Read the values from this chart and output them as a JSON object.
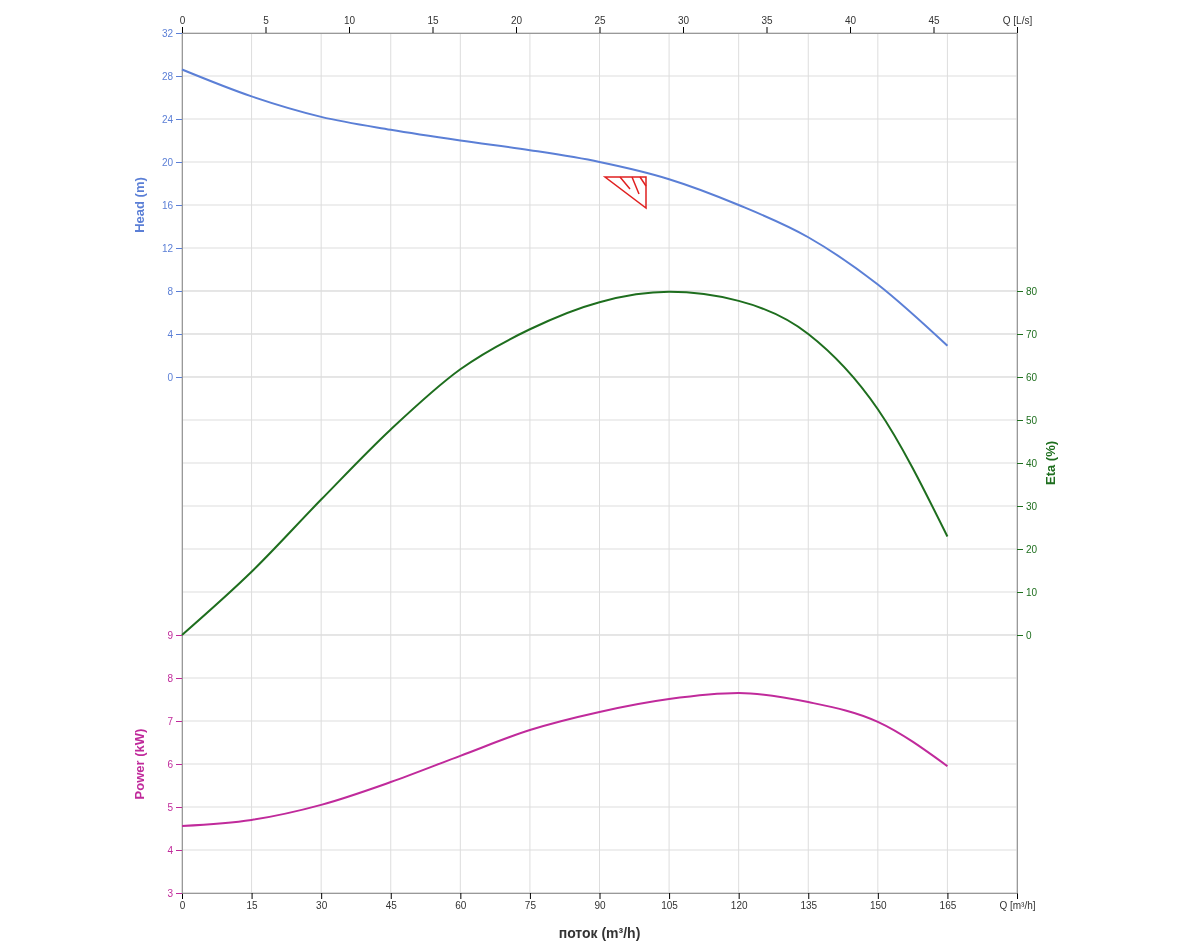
{
  "chart_data": {
    "type": "line",
    "xlabel": "поток (m³/h)",
    "ylabel": "Head (m)",
    "y2label": "Eta (%)",
    "y3label": "Power (kW)",
    "x": [
      0,
      15,
      30,
      45,
      60,
      75,
      90,
      105,
      120,
      135,
      150,
      165
    ],
    "xlim": [
      0,
      180
    ],
    "xticks": [
      0,
      15,
      30,
      45,
      60,
      75,
      90,
      105,
      120,
      135,
      150,
      165,
      {
        "value": 180,
        "label": "Q [m³/h]"
      }
    ],
    "x2lim": [
      0,
      50
    ],
    "x2ticks": [
      0,
      5,
      10,
      15,
      20,
      25,
      30,
      35,
      40,
      45,
      {
        "value": 50,
        "label": "Q [L/s]"
      }
    ],
    "ylim": [
      -48,
      32
    ],
    "yticks": [
      0,
      4,
      8,
      12,
      16,
      20,
      24,
      28,
      32
    ],
    "y2lim": [
      -60,
      140
    ],
    "y2ticks": [
      0,
      10,
      20,
      30,
      40,
      50,
      60,
      70,
      80
    ],
    "y3lim": [
      3,
      23
    ],
    "y3ticks": [
      3,
      4,
      5,
      6,
      7,
      8,
      9
    ],
    "grid": true,
    "line_style": "solid",
    "marker": "none",
    "series": [
      {
        "color": "#5b7fd6",
        "values": [
          28.6,
          26.1,
          24.2,
          23.0,
          22.0,
          21.1,
          20.0,
          18.4,
          16.0,
          13.0,
          8.6,
          2.9
        ]
      },
      {
        "color": "#1e6e1e",
        "axis": "y2",
        "values": [
          0,
          14.7,
          31.5,
          47.8,
          61.8,
          71.1,
          77.4,
          79.8,
          77.7,
          70.0,
          52.5,
          22.9
        ]
      },
      {
        "color": "#c02a9b",
        "axis": "y3",
        "values": [
          4.56,
          4.7,
          5.05,
          5.58,
          6.19,
          6.79,
          7.21,
          7.51,
          7.65,
          7.44,
          6.98,
          5.95
        ]
      }
    ]
  }
}
